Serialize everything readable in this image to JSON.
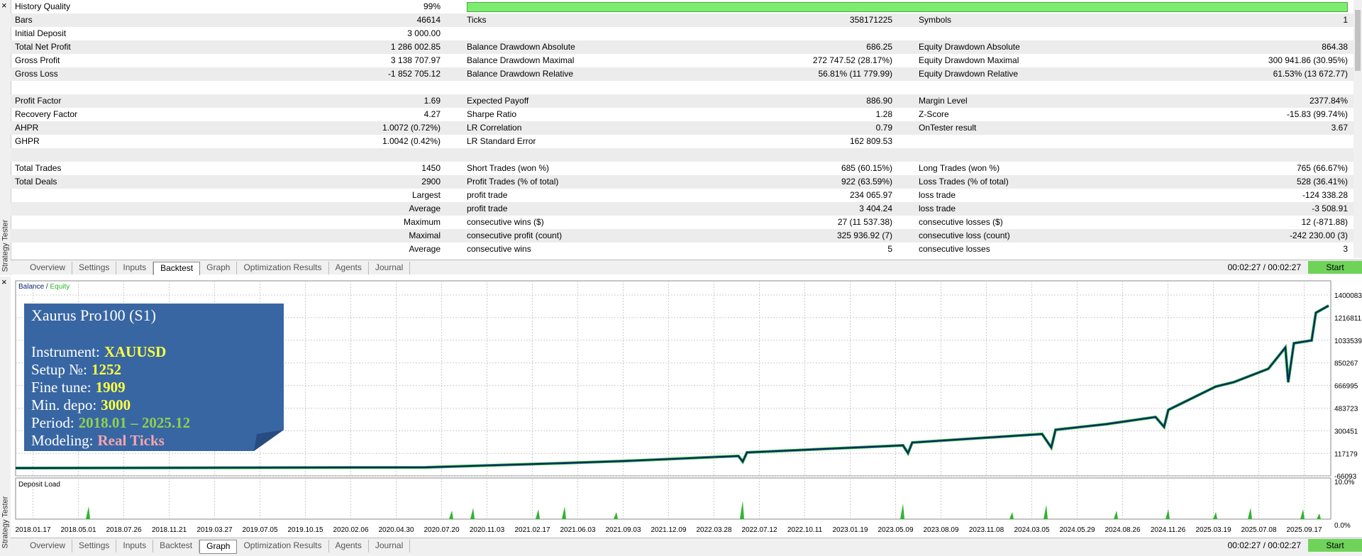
{
  "side_title": "Strategy Tester",
  "report": {
    "groups": [
      [
        [
          "History Quality",
          "99%",
          null,
          null,
          null,
          null
        ],
        [
          "Bars",
          "46614",
          "Ticks",
          "358171225",
          "Symbols",
          "1"
        ],
        [
          "Initial Deposit",
          "3 000.00",
          null,
          null,
          null,
          null
        ],
        [
          "Total Net Profit",
          "1 286 002.85",
          "Balance Drawdown Absolute",
          "686.25",
          "Equity Drawdown Absolute",
          "864.38"
        ],
        [
          "Gross Profit",
          "3 138 707.97",
          "Balance Drawdown Maximal",
          "272 747.52 (28.17%)",
          "Equity Drawdown Maximal",
          "300 941.86 (30.95%)"
        ],
        [
          "Gross Loss",
          "-1 852 705.12",
          "Balance Drawdown Relative",
          "56.81% (11 779.99)",
          "Equity Drawdown Relative",
          "61.53% (13 672.77)"
        ]
      ],
      [
        [
          "Profit Factor",
          "1.69",
          "Expected Payoff",
          "886.90",
          "Margin Level",
          "2377.84%"
        ],
        [
          "Recovery Factor",
          "4.27",
          "Sharpe Ratio",
          "1.28",
          "Z-Score",
          "-15.83 (99.74%)"
        ],
        [
          "AHPR",
          "1.0072 (0.72%)",
          "LR Correlation",
          "0.79",
          "OnTester result",
          "3.67"
        ],
        [
          "GHPR",
          "1.0042 (0.42%)",
          "LR Standard Error",
          "162 809.53",
          null,
          null
        ]
      ],
      [
        [
          "Total Trades",
          "1450",
          "Short Trades (won %)",
          "685 (60.15%)",
          "Long Trades (won %)",
          "765 (66.67%)"
        ],
        [
          "Total Deals",
          "2900",
          "Profit Trades (% of total)",
          "922 (63.59%)",
          "Loss Trades (% of total)",
          "528 (36.41%)"
        ],
        [
          null,
          "Largest",
          "profit trade",
          "234 065.97",
          "loss trade",
          "-124 338.28"
        ],
        [
          null,
          "Average",
          "profit trade",
          "3 404.24",
          "loss trade",
          "-3 508.91"
        ],
        [
          null,
          "Maximum",
          "consecutive wins ($)",
          "27 (11 537.38)",
          "consecutive losses ($)",
          "12 (-871.88)"
        ],
        [
          null,
          "Maximal",
          "consecutive profit (count)",
          "325 936.92 (7)",
          "consecutive loss (count)",
          "-242 230.00 (3)"
        ],
        [
          null,
          "Average",
          "consecutive wins",
          "5",
          "consecutive losses",
          "3"
        ]
      ]
    ]
  },
  "tabs": [
    "Overview",
    "Settings",
    "Inputs",
    "Backtest",
    "Graph",
    "Optimization Results",
    "Agents",
    "Journal"
  ],
  "active_top": 3,
  "active_bottom": 4,
  "timer": "00:02:27 / 00:02:27",
  "start": "Start",
  "graph": {
    "legend": {
      "balance": "Balance",
      "separator": "/",
      "equity": "Equity"
    },
    "overlay": {
      "title": "Xaurus Pro100 (S1)",
      "lines": [
        {
          "label": "Instrument:",
          "value": "XAUUSD",
          "color": "#ffff40"
        },
        {
          "label": "Setup №:",
          "value": "1252",
          "color": "#ffff40"
        },
        {
          "label": "Fine tune:",
          "value": "1909",
          "color": "#ffff40"
        },
        {
          "label": "Min. depo:",
          "value": "3000",
          "color": "#ffff40"
        },
        {
          "label": "Period:",
          "value": "2018.01 – 2025.12",
          "color": "#8fd14f"
        },
        {
          "label": "Modeling:",
          "value": "Real Ticks",
          "color": "#f4a6b0"
        }
      ]
    },
    "y_labels": [
      "1400083",
      "1216811",
      "1033539",
      "850267",
      "666995",
      "483723",
      "300451",
      "117179",
      "-66093"
    ],
    "deposit_title": "Deposit Load",
    "deposit_labels": [
      "10.0%",
      "0.0%"
    ],
    "x_labels": [
      "2018.01.17",
      "2018.05.01",
      "2018.07.26",
      "2018.11.21",
      "2019.03.27",
      "2019.07.05",
      "2019.10.15",
      "2020.02.06",
      "2020.04.30",
      "2020.07.20",
      "2020.11.03",
      "2021.02.17",
      "2021.06.03",
      "2021.09.03",
      "2021.12.09",
      "2022.03.28",
      "2022.07.12",
      "2022.10.11",
      "2023.01.19",
      "2023.05.09",
      "2023.08.09",
      "2023.11.08",
      "2024.03.05",
      "2024.05.29",
      "2024.08.26",
      "2024.11.26",
      "2025.03.19",
      "2025.07.08",
      "2025.09.17"
    ]
  }
}
